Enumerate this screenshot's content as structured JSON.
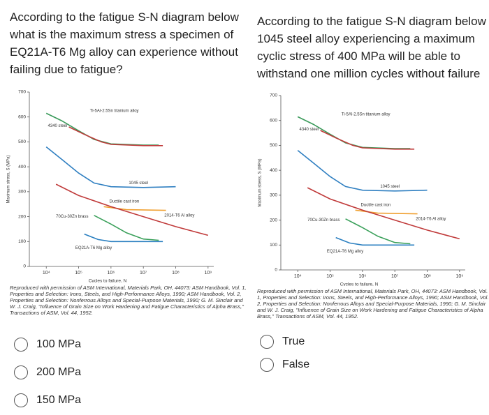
{
  "questions": [
    {
      "text": "According to the fatigue S-N diagram below what is the maximum stress a specimen of EQ21A-T6 Mg alloy can experience without failing due to fatigue?",
      "options": [
        "100 MPa",
        "200 MPa",
        "150 MPa"
      ]
    },
    {
      "text": "According to the fatigue S-N diagram below a 1045 steel alloy experiencing a maximum cyclic stress of 400 MPa will be able to withstand one million cycles without failure",
      "options": [
        "True",
        "False"
      ]
    }
  ],
  "chart_data": [
    {
      "type": "line",
      "x_label": "Cycles to failure, N",
      "y_label": "Maximum stress, S (MPa)",
      "log_x": true,
      "xlim": [
        3000,
        1500000000
      ],
      "ylim": [
        0,
        700
      ],
      "xticks": [
        {
          "value": 10000,
          "label": "10⁴"
        },
        {
          "value": 100000,
          "label": "10⁵"
        },
        {
          "value": 1000000,
          "label": "10⁶"
        },
        {
          "value": 10000000,
          "label": "10⁷"
        },
        {
          "value": 100000000,
          "label": "10⁸"
        },
        {
          "value": 1000000000,
          "label": "10⁹"
        }
      ],
      "yticks": [
        0,
        100,
        200,
        300,
        400,
        500,
        600,
        700
      ],
      "series": [
        {
          "name": "Ti-5Al-2.5Sn titanium alloy",
          "color": "#3a9a5a",
          "x": [
            10000,
            30000,
            100000,
            300000,
            1000000,
            10000000,
            30000000
          ],
          "values": [
            615,
            585,
            545,
            510,
            492,
            487,
            487
          ]
        },
        {
          "name": "4340 steel",
          "color": "#c03a3a",
          "x": [
            50000,
            150000,
            500000,
            1000000,
            10000000,
            40000000
          ],
          "values": [
            560,
            530,
            500,
            490,
            485,
            485
          ]
        },
        {
          "name": "1045 steel",
          "color": "#2f7fc1",
          "x": [
            10000,
            30000,
            100000,
            300000,
            1000000,
            10000000,
            100000000
          ],
          "values": [
            480,
            430,
            375,
            335,
            320,
            317,
            320
          ]
        },
        {
          "name": "Ductile cast iron",
          "color": "#f0a030",
          "x": [
            600000,
            3000000,
            50000000
          ],
          "values": [
            240,
            228,
            225
          ]
        },
        {
          "name": "2014-T6 Al alloy",
          "color": "#c03a3a",
          "x": [
            20000,
            100000,
            1000000,
            10000000,
            100000000,
            1000000000
          ],
          "values": [
            330,
            285,
            240,
            200,
            160,
            125
          ]
        },
        {
          "name": "70Cu-30Zn brass",
          "color": "#3aa05a",
          "x": [
            300000,
            1000000,
            3000000,
            10000000,
            30000000
          ],
          "values": [
            205,
            170,
            135,
            110,
            105
          ]
        },
        {
          "name": "EQ21A-T6 Mg alloy",
          "color": "#2a7fc0",
          "x": [
            150000,
            400000,
            1000000,
            10000000,
            40000000
          ],
          "values": [
            130,
            108,
            100,
            100,
            100
          ]
        }
      ],
      "caption": "Reproduced with permission of ASM International, Materials Park, OH, 44073: ASM Handbook, Vol. 1, Properties and Selection: Irons, Steels, and High-Performance Alloys, 1990; ASM Handbook, Vol. 2, Properties and Selection: Nonferrous Alloys and Special-Purpose Materials, 1990; G. M. Sinclair and W. J. Craig, \"Influence of Grain Size on Work Hardening and Fatigue Characteristics of Alpha Brass,\" Transactions of ASM, Vol. 44, 1952."
    },
    {
      "type": "line",
      "x_label": "Cycles to failure, N",
      "y_label": "Maximum stress, S (MPa)",
      "log_x": true,
      "xlim": [
        3000,
        1500000000
      ],
      "ylim": [
        0,
        700
      ],
      "xticks": [
        {
          "value": 10000,
          "label": "10⁴"
        },
        {
          "value": 100000,
          "label": "10⁵"
        },
        {
          "value": 1000000,
          "label": "10⁶"
        },
        {
          "value": 10000000,
          "label": "10⁷"
        },
        {
          "value": 100000000,
          "label": "10⁸"
        },
        {
          "value": 1000000000,
          "label": "10⁹"
        }
      ],
      "yticks": [
        0,
        100,
        200,
        300,
        400,
        500,
        600,
        700
      ],
      "series": [
        {
          "name": "Ti-5Al-2.5Sn titanium alloy",
          "color": "#3a9a5a",
          "x": [
            10000,
            30000,
            100000,
            300000,
            1000000,
            10000000,
            30000000
          ],
          "values": [
            615,
            585,
            545,
            510,
            492,
            487,
            487
          ]
        },
        {
          "name": "4340 steel",
          "color": "#c03a3a",
          "x": [
            50000,
            150000,
            500000,
            1000000,
            10000000,
            40000000
          ],
          "values": [
            560,
            530,
            500,
            490,
            485,
            485
          ]
        },
        {
          "name": "1045 steel",
          "color": "#2f7fc1",
          "x": [
            10000,
            30000,
            100000,
            300000,
            1000000,
            10000000,
            100000000
          ],
          "values": [
            480,
            430,
            375,
            335,
            320,
            317,
            320
          ]
        },
        {
          "name": "Ductile cast iron",
          "color": "#f0a030",
          "x": [
            600000,
            3000000,
            50000000
          ],
          "values": [
            240,
            228,
            225
          ]
        },
        {
          "name": "2014-T6 Al alloy",
          "color": "#c03a3a",
          "x": [
            20000,
            100000,
            1000000,
            10000000,
            100000000,
            1000000000
          ],
          "values": [
            330,
            285,
            240,
            200,
            160,
            125
          ]
        },
        {
          "name": "70Cu-30Zn brass",
          "color": "#3aa05a",
          "x": [
            300000,
            1000000,
            3000000,
            10000000,
            30000000
          ],
          "values": [
            205,
            170,
            135,
            110,
            105
          ]
        },
        {
          "name": "EQ21A-T6 Mg alloy",
          "color": "#2a7fc0",
          "x": [
            150000,
            400000,
            1000000,
            10000000,
            40000000
          ],
          "values": [
            130,
            108,
            100,
            100,
            100
          ]
        }
      ],
      "caption": "Reproduced with permission of ASM International, Materials Park, OH, 44073: ASM Handbook, Vol. 1, Properties and Selection: Irons, Steels, and High-Performance Alloys, 1990; ASM Handbook, Vol. 2, Properties and Selection: Nonferrous Alloys and Special-Purpose Materials, 1990; G. M. Sinclair and W. J. Craig, \"Influence of Grain Size on Work Hardening and Fatigue Characteristics of Alpha Brass,\" Transactions of ASM, Vol. 44, 1952."
    }
  ]
}
